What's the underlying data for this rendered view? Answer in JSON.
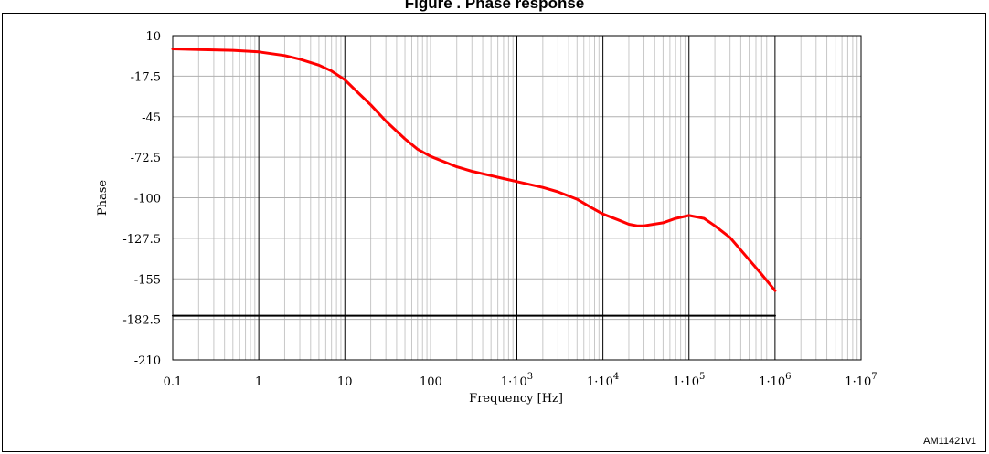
{
  "title": "Figure . Phase response",
  "figure_id": "AM11421v1",
  "chart_data": {
    "type": "line",
    "xlabel": "Frequency [Hz]",
    "ylabel": "Phase",
    "x_scale": "log",
    "xlim": [
      0.1,
      10000000
    ],
    "ylim": [
      -210,
      10
    ],
    "grid": true,
    "x_ticks": [
      {
        "value": 0.1,
        "label": "0.1"
      },
      {
        "value": 1,
        "label": "1"
      },
      {
        "value": 10,
        "label": "10"
      },
      {
        "value": 100,
        "label": "100"
      },
      {
        "value": 1000,
        "label": "1·10",
        "exp": "3"
      },
      {
        "value": 10000,
        "label": "1·10",
        "exp": "4"
      },
      {
        "value": 100000,
        "label": "1·10",
        "exp": "5"
      },
      {
        "value": 1000000,
        "label": "1·10",
        "exp": "6"
      },
      {
        "value": 10000000,
        "label": "1·10",
        "exp": "7"
      }
    ],
    "y_ticks": [
      {
        "value": 10,
        "label": "10"
      },
      {
        "value": -17.5,
        "label": "-17.5"
      },
      {
        "value": -45,
        "label": "-45"
      },
      {
        "value": -72.5,
        "label": "-72.5"
      },
      {
        "value": -100,
        "label": "-100"
      },
      {
        "value": -127.5,
        "label": "-127.5"
      },
      {
        "value": -155,
        "label": "-155"
      },
      {
        "value": -182.5,
        "label": "-182.5"
      },
      {
        "value": -210,
        "label": "-210"
      }
    ],
    "series": [
      {
        "color": "#ff0000",
        "x": [
          0.1,
          0.2,
          0.5,
          1,
          2,
          3,
          5,
          7,
          10,
          15,
          20,
          30,
          50,
          70,
          100,
          200,
          300,
          500,
          700,
          1000,
          2000,
          3000,
          5000,
          7000,
          10000,
          15000,
          20000,
          25000,
          30000,
          50000,
          70000,
          100000,
          150000,
          200000,
          300000,
          500000,
          700000,
          1000000
        ],
        "y": [
          1,
          0.5,
          0,
          -1,
          -3.5,
          -6,
          -10,
          -14,
          -20,
          -30,
          -37,
          -48,
          -60,
          -67,
          -72,
          -79,
          -82,
          -85,
          -87,
          -89,
          -93,
          -96,
          -101,
          -106,
          -111,
          -115,
          -118,
          -119,
          -119,
          -117,
          -114,
          -112,
          -114,
          -119,
          -127,
          -142,
          -152,
          -163
        ]
      },
      {
        "color": "#000000",
        "x": [
          0.1,
          1000000
        ],
        "y": [
          -180,
          -180
        ]
      }
    ]
  }
}
